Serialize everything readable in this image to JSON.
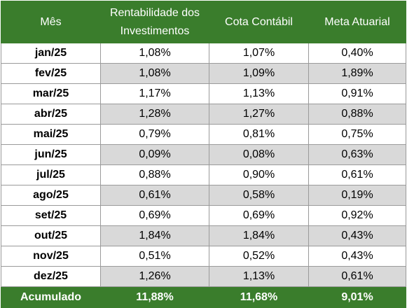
{
  "table": {
    "headers": [
      "Mês",
      "Rentabilidade dos Investimentos",
      "Cota Contábil",
      "Meta Atuarial"
    ],
    "rows": [
      {
        "month": "jan/25",
        "rent": "1,08%",
        "cota": "1,07%",
        "meta": "0,40%"
      },
      {
        "month": "fev/25",
        "rent": "1,08%",
        "cota": "1,09%",
        "meta": "1,89%"
      },
      {
        "month": "mar/25",
        "rent": "1,17%",
        "cota": "1,13%",
        "meta": "0,91%"
      },
      {
        "month": "abr/25",
        "rent": "1,28%",
        "cota": "1,27%",
        "meta": "0,88%"
      },
      {
        "month": "mai/25",
        "rent": "0,79%",
        "cota": "0,81%",
        "meta": "0,75%"
      },
      {
        "month": "jun/25",
        "rent": "0,09%",
        "cota": "0,08%",
        "meta": "0,63%"
      },
      {
        "month": "jul/25",
        "rent": "0,88%",
        "cota": "0,90%",
        "meta": "0,61%"
      },
      {
        "month": "ago/25",
        "rent": "0,61%",
        "cota": "0,58%",
        "meta": "0,19%"
      },
      {
        "month": "set/25",
        "rent": "0,69%",
        "cota": "0,69%",
        "meta": "0,92%"
      },
      {
        "month": "out/25",
        "rent": "1,84%",
        "cota": "1,84%",
        "meta": "0,43%"
      },
      {
        "month": "nov/25",
        "rent": "0,51%",
        "cota": "0,52%",
        "meta": "0,43%"
      },
      {
        "month": "dez/25",
        "rent": "1,26%",
        "cota": "1,13%",
        "meta": "0,61%"
      }
    ],
    "footer": {
      "label": "Acumulado",
      "rent": "11,88%",
      "cota": "11,68%",
      "meta": "9,01%"
    }
  },
  "colors": {
    "header_bg": "#3a7d2c",
    "header_text": "#ffffff",
    "shaded_row": "#d9d9d9",
    "border": "#9a9a9a"
  }
}
